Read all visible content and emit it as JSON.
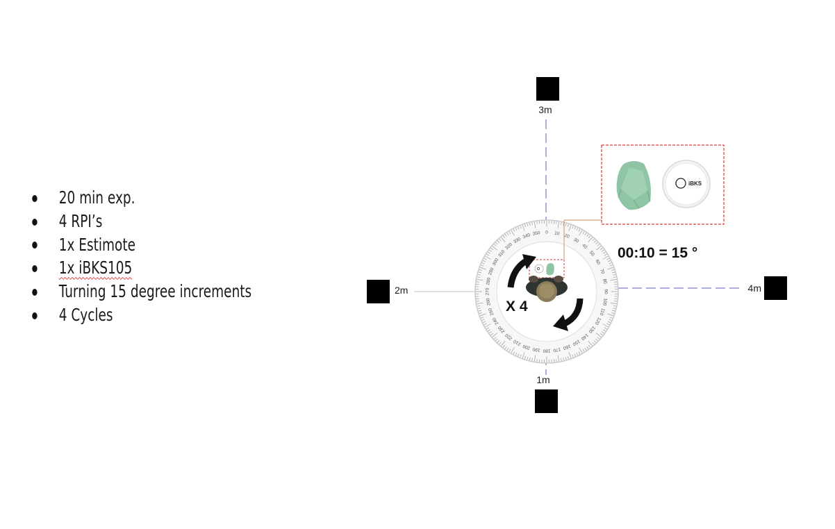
{
  "bullets": [
    "20 min exp.",
    "4 RPI’s",
    "1x Estimote",
    "1x iBKS105",
    "Turning 15 degree increments",
    "4 Cycles"
  ],
  "diagram": {
    "stations": {
      "top": "3m",
      "left": "2m",
      "right": "4m",
      "bottom": "1m"
    },
    "rotation_label": "00:10 = 15 °",
    "repeat_label": "X 4",
    "beacon_logo": "iBKS",
    "protractor_tick_labels": [
      "0",
      "10",
      "20",
      "30",
      "40",
      "50",
      "60",
      "70",
      "80",
      "90",
      "100",
      "110",
      "120",
      "130",
      "140",
      "150",
      "160",
      "170",
      "180",
      "190",
      "200",
      "210",
      "220",
      "230",
      "240",
      "250",
      "260",
      "270",
      "280",
      "290",
      "300",
      "310",
      "320",
      "330",
      "340",
      "350"
    ],
    "colors": {
      "axis_vertical": "#5a5fb8",
      "axis_horizontal": "#cfcfcf",
      "axis_right": "#5a5fb8",
      "callout_border": "#d93a3a",
      "estimote": "#8fc4a4",
      "arrows": "#111111"
    }
  }
}
